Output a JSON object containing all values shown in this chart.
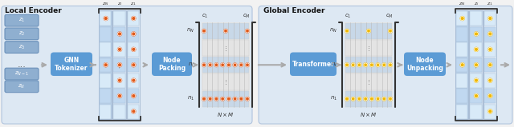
{
  "bg_color": "#f2f2f2",
  "local_encoder_label": "Local Encoder",
  "global_encoder_label": "Global Encoder",
  "gnn_label": "GNN\nTokenizer",
  "node_packing_label": "Node\nPacking",
  "transformer_label": "Transformer",
  "node_unpacking_label": "Node\nUnpacking",
  "blue_box_color": "#5b9bd5",
  "section_bg": "#dde8f3",
  "section_border": "#b0c4de",
  "col_bg_0": "#b8d0e8",
  "col_bg_1": "#ccdcee",
  "col_bg_2": "#dce8f4",
  "seg_light": "#d8eaf8",
  "seg_dark": "#c0d8f0",
  "input_rect_color": "#8fafd0",
  "input_rect_border": "#6a90ba",
  "orange_dot_color": "#e05a1a",
  "yellow_dot_color": "#f0b800",
  "arrow_color": "#aaaaaa",
  "bracket_color": "#333333",
  "label_color": "#333333",
  "matrix_row_light": "#e0e0e0",
  "matrix_row_dark": "#d0d0d0",
  "matrix_row_highlight": "#c8d8e8",
  "grid_color": "#bbbbbb"
}
